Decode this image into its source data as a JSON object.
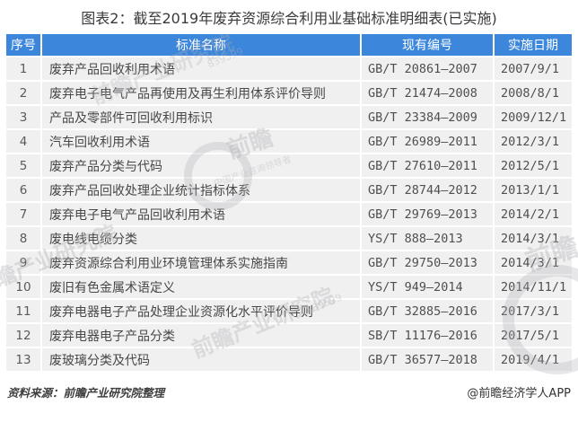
{
  "title": "图表2：截至2019年废弃资源综合利用业基础标准明细表(已实施)",
  "chart_data": {
    "type": "table",
    "title": "图表2：截至2019年废弃资源综合利用业基础标准明细表(已实施)",
    "headers": [
      "序号",
      "标准名称",
      "现有编号",
      "实施日期"
    ],
    "rows": [
      [
        "1",
        "废弃产品回收利用术语",
        "GB/T 20861—2007",
        "2007/9/1"
      ],
      [
        "2",
        "废弃电子电气产品再使用及再生利用体系评价导则",
        "GB/T 21474—2008",
        "2008/8/1"
      ],
      [
        "3",
        "产品及零部件可回收利用标识",
        "GB/T 23384—2009",
        "2009/12/1"
      ],
      [
        "4",
        "汽车回收利用术语",
        "GB/T 26989—2011",
        "2012/3/1"
      ],
      [
        "5",
        "废弃产品分类与代码",
        "GB/T 27610—2011",
        "2012/5/1"
      ],
      [
        "6",
        "废弃产品回收处理企业统计指标体系",
        "GB/T 28744—2012",
        "2013/1/1"
      ],
      [
        "7",
        "废弃电子电气产品回收利用术语",
        "GB/T 29769—2013",
        "2014/2/1"
      ],
      [
        "8",
        "废电线电缆分类",
        "YS/T 888—2013",
        "2014/3/1"
      ],
      [
        "9",
        "废弃资源综合利用业环境管理体系实施指南",
        "GB/T 29750—2013",
        "2014/3/1"
      ],
      [
        "10",
        "废旧有色金属术语定义",
        "YS/T 949—2014",
        "2014/11/1"
      ],
      [
        "11",
        "废弃电器电子产品处理企业资源化水平评价导则",
        "GB/T 32885—2016",
        "2017/3/1"
      ],
      [
        "12",
        "废弃电器电子产品分类",
        "SB/T 11176—2016",
        "2017/5/1"
      ],
      [
        "13",
        "废玻璃分类及代码",
        "GB/T 36577—2018",
        "2019/4/1"
      ]
    ]
  },
  "footer": {
    "source": "资料来源：前瞻产业研究院整理",
    "credit": "@前瞻经济学人APP"
  },
  "watermark": {
    "brand": "前瞻",
    "full": "前瞻产业研究院",
    "tagline": "中国产业咨询领导者",
    "digits": "839599"
  },
  "colors": {
    "header_bg": "#3C86DB",
    "header_text": "#FFFFFF",
    "row_bg": "#F0F0F0",
    "body_text": "#474747",
    "title_text": "#3A3A3A"
  }
}
